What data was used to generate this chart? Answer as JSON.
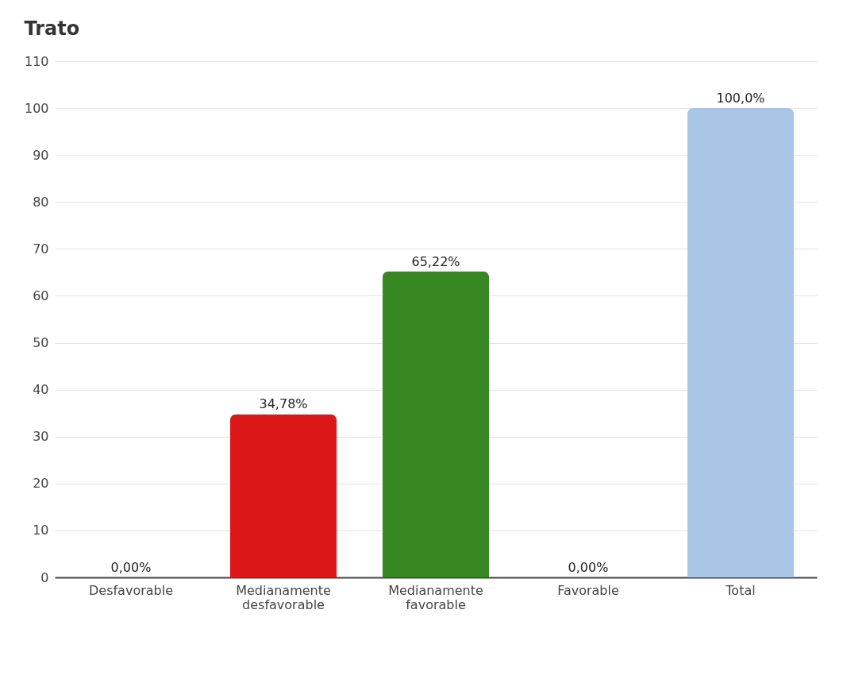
{
  "chart_data": {
    "type": "bar",
    "title": "Trato",
    "categories": [
      "Desfavorable",
      "Medianamente desfavorable",
      "Medianamente favorable",
      "Favorable",
      "Total"
    ],
    "values": [
      0,
      34.78,
      65.22,
      0,
      100
    ],
    "colors": [
      "#d9251b",
      "#dc1717",
      "#368722",
      "#1f4e79",
      "#aac6e6"
    ],
    "value_labels": [
      "0,00%",
      "34,78%",
      "65,22%",
      "0,00%",
      "100,0%"
    ],
    "ylim": [
      0,
      110
    ],
    "yticks": [
      0,
      10,
      20,
      30,
      40,
      50,
      60,
      70,
      80,
      90,
      100,
      110
    ],
    "grid": "y",
    "legend": false
  }
}
